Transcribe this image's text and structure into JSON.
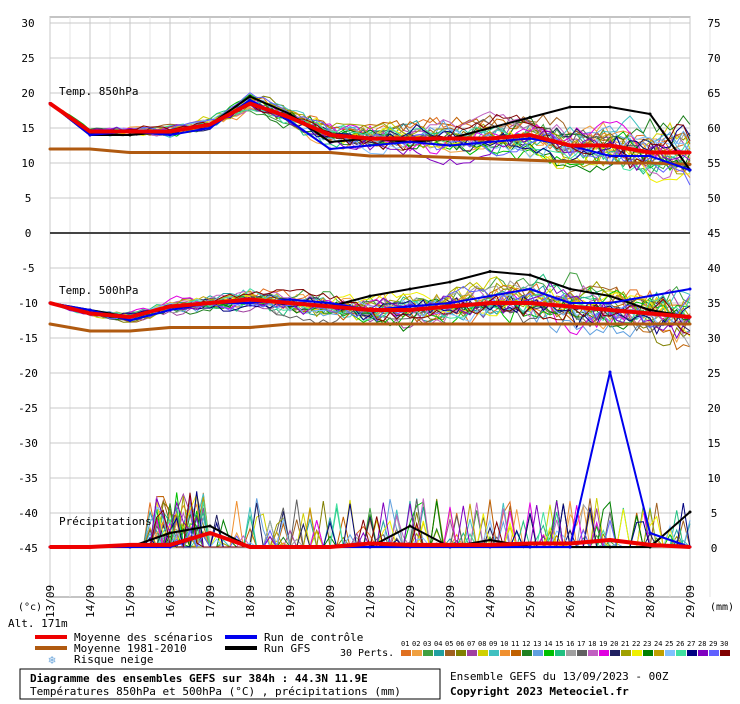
{
  "colors": {
    "mean": "#ee0000",
    "climatology": "#b05a10",
    "control": "#0000ee",
    "gfs": "#000000",
    "grid": "#c8c8c8",
    "snow": "#6fa8dc"
  },
  "chart_data": [
    {
      "type": "line",
      "panel": "temperature",
      "label_850": "Temp. 850hPa",
      "label_500": "Temp. 500hPa",
      "x": [
        "13/09",
        "14/09",
        "15/09",
        "16/09",
        "17/09",
        "18/09",
        "19/09",
        "20/09",
        "21/09",
        "22/09",
        "23/09",
        "24/09",
        "25/09",
        "26/09",
        "27/09",
        "28/09",
        "29/09"
      ],
      "y_left_ticks": [
        "30",
        "25",
        "20",
        "15",
        "10",
        "5",
        "0",
        "-5",
        "-10",
        "-15",
        "-20",
        "-25",
        "-30",
        "-35",
        "-40",
        "-45"
      ],
      "y_right_ticks": [
        "75",
        "70",
        "65",
        "60",
        "55",
        "50",
        "45",
        "40",
        "35",
        "30",
        "25",
        "20",
        "15",
        "10",
        "5",
        "0"
      ],
      "y_left_unit": "(°c)",
      "y_right_unit": "(mm)",
      "altitude": "Alt. 171m",
      "series": [
        {
          "name": "Moyenne des scénarios",
          "level": "850hPa",
          "values": [
            18.5,
            14.5,
            14.5,
            14.5,
            15.5,
            18.5,
            16.5,
            14,
            13.5,
            13.5,
            13.5,
            13.5,
            14,
            12.5,
            12.5,
            11.5,
            11.5
          ]
        },
        {
          "name": "Moyenne 1981-2010",
          "level": "850hPa",
          "values": [
            12,
            12,
            11.5,
            11.5,
            11.5,
            11.5,
            11.5,
            11.5,
            11,
            11,
            10.8,
            10.6,
            10.4,
            10.2,
            10,
            10,
            9.8
          ]
        },
        {
          "name": "Run de contrôle",
          "level": "850hPa",
          "values": [
            18.5,
            14,
            14.5,
            14,
            15,
            19,
            16,
            12,
            12.5,
            13,
            12.5,
            13,
            13.5,
            12.5,
            11,
            11,
            9
          ]
        },
        {
          "name": "Run GFS",
          "level": "850hPa",
          "values": [
            18.5,
            14,
            14,
            14.5,
            15.5,
            19.5,
            17,
            13,
            13.5,
            13,
            13.5,
            15,
            16.5,
            18,
            18,
            17,
            9
          ]
        },
        {
          "name": "Moyenne des scénarios",
          "level": "500hPa",
          "values": [
            -10,
            -11.5,
            -12,
            -10.5,
            -10,
            -9.5,
            -10,
            -10.5,
            -11,
            -11,
            -10.5,
            -10,
            -10,
            -10.5,
            -11,
            -11.5,
            -12
          ]
        },
        {
          "name": "Moyenne 1981-2010",
          "level": "500hPa",
          "values": [
            -13,
            -14,
            -14,
            -13.5,
            -13.5,
            -13.5,
            -13,
            -13,
            -13,
            -13,
            -13,
            -13,
            -13,
            -13,
            -13,
            -13,
            -13
          ]
        },
        {
          "name": "Run de contrôle",
          "level": "500hPa",
          "values": [
            -10,
            -11,
            -12.5,
            -11,
            -10,
            -10,
            -9.5,
            -10,
            -11,
            -10.5,
            -10,
            -9,
            -8,
            -10,
            -10,
            -9,
            -8
          ]
        },
        {
          "name": "Run GFS",
          "level": "500hPa",
          "values": [
            -10,
            -11,
            -12,
            -10.5,
            -10,
            -9.5,
            -10,
            -10.5,
            -9,
            -8,
            -7,
            -5.5,
            -6,
            -8,
            -9,
            -11,
            -12
          ]
        }
      ]
    },
    {
      "type": "line",
      "panel": "precipitation",
      "label": "Précipitations",
      "y_unit": "(mm)",
      "x": [
        "13/09",
        "14/09",
        "15/09",
        "16/09",
        "17/09",
        "18/09",
        "19/09",
        "20/09",
        "21/09",
        "22/09",
        "23/09",
        "24/09",
        "25/09",
        "26/09",
        "27/09",
        "28/09",
        "29/09"
      ],
      "series": [
        {
          "name": "Moyenne des scénarios",
          "values": [
            0,
            0,
            0.3,
            0.3,
            2,
            0,
            0,
            0,
            0.5,
            0.3,
            0.3,
            0.3,
            0.5,
            0.5,
            1,
            0.3,
            0
          ]
        },
        {
          "name": "Run de contrôle",
          "values": [
            0,
            0,
            0,
            0,
            2,
            0,
            0,
            0,
            0,
            0,
            0,
            0,
            0,
            0,
            25,
            2,
            0
          ]
        },
        {
          "name": "Run GFS",
          "values": [
            0,
            0,
            0,
            2,
            3,
            0,
            0,
            0,
            0,
            3,
            0,
            1,
            0,
            0,
            0,
            0,
            5
          ]
        }
      ]
    }
  ],
  "legend": {
    "mean": "Moyenne des scénarios",
    "clim": "Moyenne 1981-2010",
    "snow": "Risque neige",
    "control": "Run de contrôle",
    "gfs": "Run GFS",
    "perts": "30 Perts.",
    "members": [
      "01",
      "02",
      "03",
      "04",
      "05",
      "06",
      "07",
      "08",
      "09",
      "10",
      "11",
      "12",
      "13",
      "14",
      "15",
      "16",
      "17",
      "18",
      "19",
      "20",
      "21",
      "22",
      "23",
      "24",
      "25",
      "26",
      "27",
      "28",
      "29",
      "30"
    ],
    "member_colors": [
      "#e07020",
      "#f0a040",
      "#40a040",
      "#20a0a0",
      "#a06020",
      "#808000",
      "#a040a0",
      "#d0d000",
      "#40c0c0",
      "#f09030",
      "#c06000",
      "#208020",
      "#60a0e0",
      "#00c000",
      "#20c080",
      "#a0a0a0",
      "#606060",
      "#c060c0",
      "#e000e0",
      "#202060",
      "#a0a000",
      "#f0f000",
      "#008000",
      "#c0a000",
      "#80c0ff",
      "#40e0a0",
      "#000080",
      "#8000c0",
      "#6060ff",
      "#800000"
    ]
  },
  "footer": {
    "title": "Diagramme des ensembles GEFS sur 384h : 44.3N 11.9E",
    "subtitle": "Températures 850hPa et 500hPa (°C) , précipitations (mm)",
    "run": "Ensemble GEFS du 13/09/2023 - 00Z",
    "copyright": "Copyright 2023 Meteociel.fr"
  }
}
